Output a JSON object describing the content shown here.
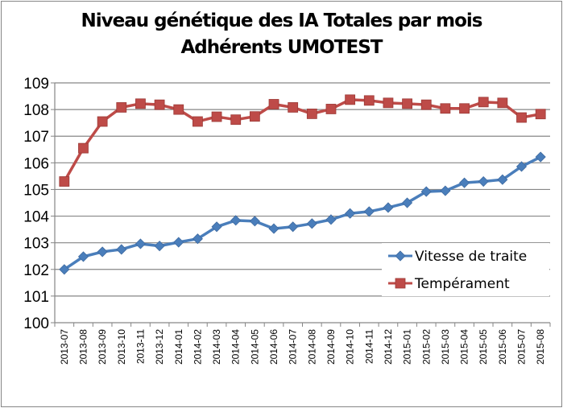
{
  "chart_data": {
    "type": "line",
    "title": "Niveau génétique des IA Totales par mois",
    "subtitle": "Adhérents UMOTEST",
    "xlabel": "",
    "ylabel": "",
    "ylim": [
      100,
      109
    ],
    "yticks": [
      "100",
      "101",
      "102",
      "103",
      "104",
      "105",
      "106",
      "107",
      "108",
      "109"
    ],
    "grid": true,
    "legend_position": "right",
    "categories": [
      "2013-07",
      "2013-08",
      "2013-09",
      "2013-10",
      "2013-11",
      "2013-12",
      "2014-01",
      "2014-02",
      "2014-03",
      "2014-04",
      "2014-05",
      "2014-06",
      "2014-07",
      "2014-08",
      "2014-09",
      "2014-10",
      "2014-11",
      "2014-12",
      "2015-01",
      "2015-02",
      "2015-03",
      "2015-04",
      "2015-05",
      "2015-06",
      "2015-07",
      "2015-08"
    ],
    "series": [
      {
        "name": "Vitesse de traite",
        "color": "#4A7EBB",
        "marker": "diamond",
        "values": [
          102.0,
          102.48,
          102.66,
          102.75,
          102.96,
          102.88,
          103.02,
          103.15,
          103.6,
          103.84,
          103.81,
          103.53,
          103.6,
          103.72,
          103.87,
          104.1,
          104.17,
          104.32,
          104.5,
          104.92,
          104.95,
          105.25,
          105.3,
          105.37,
          105.86,
          106.22
        ]
      },
      {
        "name": "Tempérament",
        "color": "#BE4B48",
        "marker": "square",
        "values": [
          105.3,
          106.55,
          107.55,
          108.08,
          108.22,
          108.18,
          108.0,
          107.55,
          107.73,
          107.62,
          107.74,
          108.2,
          108.08,
          107.84,
          108.02,
          108.37,
          108.34,
          108.25,
          108.22,
          108.18,
          108.04,
          108.04,
          108.28,
          108.25,
          107.7,
          107.83
        ]
      }
    ]
  }
}
